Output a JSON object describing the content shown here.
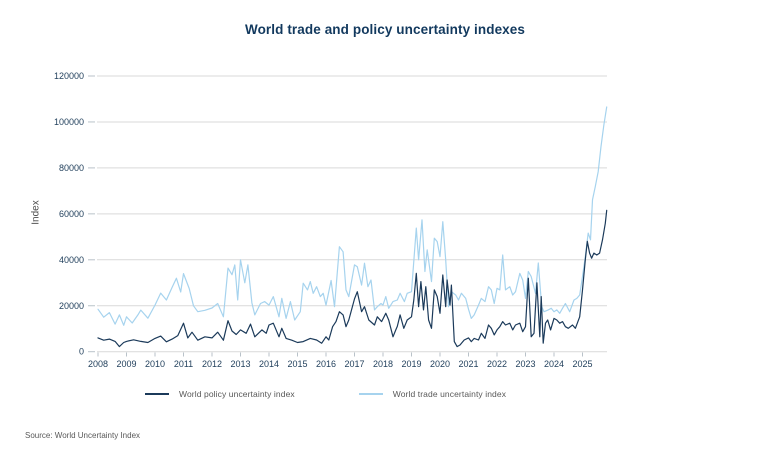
{
  "title": "World trade and policy uncertainty indexes",
  "source": "Source: World Uncertainty Index",
  "chart_data": {
    "type": "line",
    "title": "World trade and policy uncertainty indexes",
    "xlabel": "",
    "ylabel": "Index",
    "ylim": [
      0,
      120000
    ],
    "xlim": [
      2008,
      2025.9
    ],
    "grid": "horizontal",
    "legend_position": "bottom",
    "y_ticks": [
      0,
      20000,
      40000,
      60000,
      80000,
      100000,
      120000
    ],
    "x_ticks": [
      2008,
      2009,
      2010,
      2011,
      2012,
      2013,
      2014,
      2015,
      2016,
      2017,
      2018,
      2019,
      2020,
      2021,
      2022,
      2023,
      2024,
      2025
    ],
    "colors": {
      "policy_line": "#1b3a5a",
      "trade_line": "#a6d3ee",
      "gridline": "#d9d9d9",
      "tick": "#b9c2c9",
      "axis_text": "#24425e",
      "title_text": "#12395e",
      "legend_text": "#595959",
      "background": "#ffffff"
    },
    "series": [
      {
        "name": "World policy uncertainty index",
        "color": "#1b3a5a",
        "points": [
          [
            2008.0,
            6000
          ],
          [
            2008.2,
            5000
          ],
          [
            2008.4,
            5500
          ],
          [
            2008.6,
            4500
          ],
          [
            2008.75,
            2200
          ],
          [
            2008.9,
            4000
          ],
          [
            2009.0,
            4500
          ],
          [
            2009.25,
            5200
          ],
          [
            2009.5,
            4500
          ],
          [
            2009.75,
            4000
          ],
          [
            2010.0,
            5800
          ],
          [
            2010.2,
            6800
          ],
          [
            2010.4,
            4300
          ],
          [
            2010.6,
            5500
          ],
          [
            2010.8,
            7000
          ],
          [
            2011.0,
            12400
          ],
          [
            2011.15,
            6000
          ],
          [
            2011.3,
            8500
          ],
          [
            2011.5,
            5000
          ],
          [
            2011.75,
            6500
          ],
          [
            2012.0,
            6000
          ],
          [
            2012.2,
            8500
          ],
          [
            2012.4,
            5000
          ],
          [
            2012.56,
            13500
          ],
          [
            2012.7,
            9000
          ],
          [
            2012.85,
            7500
          ],
          [
            2013.0,
            9500
          ],
          [
            2013.2,
            8000
          ],
          [
            2013.35,
            12000
          ],
          [
            2013.5,
            6500
          ],
          [
            2013.75,
            9500
          ],
          [
            2013.9,
            8000
          ],
          [
            2014.0,
            11600
          ],
          [
            2014.15,
            12400
          ],
          [
            2014.35,
            6500
          ],
          [
            2014.45,
            10200
          ],
          [
            2014.6,
            5800
          ],
          [
            2014.8,
            5000
          ],
          [
            2015.0,
            4000
          ],
          [
            2015.2,
            4400
          ],
          [
            2015.45,
            5800
          ],
          [
            2015.67,
            5100
          ],
          [
            2015.85,
            3700
          ],
          [
            2016.0,
            6500
          ],
          [
            2016.1,
            5100
          ],
          [
            2016.23,
            10900
          ],
          [
            2016.35,
            13100
          ],
          [
            2016.47,
            17400
          ],
          [
            2016.6,
            16000
          ],
          [
            2016.7,
            10900
          ],
          [
            2016.8,
            13800
          ],
          [
            2017.0,
            23000
          ],
          [
            2017.1,
            26100
          ],
          [
            2017.25,
            17400
          ],
          [
            2017.35,
            19600
          ],
          [
            2017.5,
            13800
          ],
          [
            2017.7,
            11600
          ],
          [
            2017.8,
            15200
          ],
          [
            2017.95,
            13100
          ],
          [
            2018.1,
            16700
          ],
          [
            2018.2,
            13800
          ],
          [
            2018.35,
            6500
          ],
          [
            2018.45,
            9500
          ],
          [
            2018.5,
            11000
          ],
          [
            2018.6,
            16000
          ],
          [
            2018.73,
            10200
          ],
          [
            2018.85,
            13800
          ],
          [
            2019.0,
            15200
          ],
          [
            2019.08,
            22500
          ],
          [
            2019.17,
            34100
          ],
          [
            2019.25,
            19600
          ],
          [
            2019.33,
            30500
          ],
          [
            2019.42,
            18200
          ],
          [
            2019.5,
            28300
          ],
          [
            2019.6,
            13800
          ],
          [
            2019.7,
            10200
          ],
          [
            2019.8,
            26900
          ],
          [
            2019.9,
            24000
          ],
          [
            2020.0,
            16700
          ],
          [
            2020.1,
            33400
          ],
          [
            2020.2,
            19600
          ],
          [
            2020.25,
            31200
          ],
          [
            2020.35,
            20300
          ],
          [
            2020.4,
            29000
          ],
          [
            2020.5,
            4400
          ],
          [
            2020.6,
            2200
          ],
          [
            2020.7,
            2900
          ],
          [
            2020.85,
            5100
          ],
          [
            2021.0,
            6000
          ],
          [
            2021.1,
            4400
          ],
          [
            2021.2,
            5800
          ],
          [
            2021.35,
            5100
          ],
          [
            2021.45,
            8000
          ],
          [
            2021.58,
            5800
          ],
          [
            2021.7,
            11600
          ],
          [
            2021.8,
            10200
          ],
          [
            2021.9,
            7300
          ],
          [
            2022.0,
            9500
          ],
          [
            2022.1,
            10900
          ],
          [
            2022.2,
            13100
          ],
          [
            2022.3,
            11600
          ],
          [
            2022.45,
            12400
          ],
          [
            2022.55,
            9500
          ],
          [
            2022.65,
            11600
          ],
          [
            2022.8,
            12400
          ],
          [
            2022.9,
            8700
          ],
          [
            2023.0,
            10900
          ],
          [
            2023.1,
            32000
          ],
          [
            2023.2,
            6500
          ],
          [
            2023.3,
            8000
          ],
          [
            2023.4,
            30000
          ],
          [
            2023.5,
            6500
          ],
          [
            2023.55,
            24000
          ],
          [
            2023.62,
            3700
          ],
          [
            2023.7,
            12400
          ],
          [
            2023.78,
            13800
          ],
          [
            2023.88,
            9500
          ],
          [
            2024.0,
            14500
          ],
          [
            2024.1,
            13800
          ],
          [
            2024.2,
            12400
          ],
          [
            2024.3,
            13100
          ],
          [
            2024.4,
            10900
          ],
          [
            2024.5,
            10200
          ],
          [
            2024.65,
            11600
          ],
          [
            2024.75,
            10200
          ],
          [
            2024.9,
            15200
          ],
          [
            2025.0,
            26900
          ],
          [
            2025.1,
            40000
          ],
          [
            2025.17,
            48000
          ],
          [
            2025.25,
            42900
          ],
          [
            2025.32,
            40700
          ],
          [
            2025.4,
            42900
          ],
          [
            2025.5,
            42100
          ],
          [
            2025.6,
            42900
          ],
          [
            2025.7,
            48700
          ],
          [
            2025.8,
            55900
          ],
          [
            2025.85,
            61500
          ]
        ]
      },
      {
        "name": "World trade uncertainty index",
        "color": "#a6d3ee",
        "points": [
          [
            2008.0,
            18500
          ],
          [
            2008.2,
            15000
          ],
          [
            2008.4,
            17000
          ],
          [
            2008.6,
            12000
          ],
          [
            2008.75,
            16000
          ],
          [
            2008.9,
            11500
          ],
          [
            2009.0,
            15200
          ],
          [
            2009.2,
            12500
          ],
          [
            2009.4,
            16000
          ],
          [
            2009.5,
            18100
          ],
          [
            2009.75,
            14600
          ],
          [
            2010.0,
            20300
          ],
          [
            2010.2,
            25500
          ],
          [
            2010.4,
            22500
          ],
          [
            2010.6,
            28000
          ],
          [
            2010.75,
            32000
          ],
          [
            2010.9,
            26000
          ],
          [
            2011.0,
            34000
          ],
          [
            2011.2,
            27500
          ],
          [
            2011.35,
            20000
          ],
          [
            2011.5,
            17400
          ],
          [
            2011.75,
            18000
          ],
          [
            2012.0,
            19000
          ],
          [
            2012.2,
            21000
          ],
          [
            2012.4,
            15200
          ],
          [
            2012.56,
            36400
          ],
          [
            2012.7,
            33500
          ],
          [
            2012.8,
            37800
          ],
          [
            2012.9,
            22500
          ],
          [
            2013.0,
            40000
          ],
          [
            2013.15,
            30000
          ],
          [
            2013.26,
            37800
          ],
          [
            2013.4,
            21200
          ],
          [
            2013.5,
            16000
          ],
          [
            2013.7,
            21000
          ],
          [
            2013.85,
            21800
          ],
          [
            2014.0,
            20300
          ],
          [
            2014.15,
            24000
          ],
          [
            2014.35,
            15200
          ],
          [
            2014.45,
            23200
          ],
          [
            2014.6,
            14500
          ],
          [
            2014.75,
            21800
          ],
          [
            2014.9,
            13800
          ],
          [
            2015.1,
            17400
          ],
          [
            2015.2,
            29800
          ],
          [
            2015.35,
            26900
          ],
          [
            2015.45,
            30500
          ],
          [
            2015.55,
            25400
          ],
          [
            2015.67,
            28300
          ],
          [
            2015.8,
            24000
          ],
          [
            2015.9,
            25400
          ],
          [
            2016.0,
            20300
          ],
          [
            2016.18,
            31000
          ],
          [
            2016.3,
            19600
          ],
          [
            2016.47,
            45700
          ],
          [
            2016.6,
            43500
          ],
          [
            2016.7,
            26900
          ],
          [
            2016.8,
            24000
          ],
          [
            2017.0,
            37800
          ],
          [
            2017.1,
            37000
          ],
          [
            2017.25,
            29000
          ],
          [
            2017.35,
            38500
          ],
          [
            2017.47,
            28300
          ],
          [
            2017.58,
            31200
          ],
          [
            2017.7,
            18200
          ],
          [
            2017.8,
            19600
          ],
          [
            2017.93,
            21000
          ],
          [
            2018.0,
            20300
          ],
          [
            2018.1,
            24000
          ],
          [
            2018.2,
            18900
          ],
          [
            2018.35,
            21800
          ],
          [
            2018.5,
            22500
          ],
          [
            2018.6,
            25400
          ],
          [
            2018.75,
            21800
          ],
          [
            2018.85,
            25400
          ],
          [
            2019.0,
            26100
          ],
          [
            2019.17,
            53800
          ],
          [
            2019.25,
            40000
          ],
          [
            2019.37,
            57400
          ],
          [
            2019.47,
            34900
          ],
          [
            2019.55,
            44300
          ],
          [
            2019.7,
            30500
          ],
          [
            2019.8,
            49400
          ],
          [
            2019.9,
            47900
          ],
          [
            2020.0,
            41400
          ],
          [
            2020.1,
            56600
          ],
          [
            2020.2,
            40000
          ],
          [
            2020.3,
            19600
          ],
          [
            2020.4,
            26100
          ],
          [
            2020.55,
            24700
          ],
          [
            2020.65,
            22500
          ],
          [
            2020.75,
            25400
          ],
          [
            2020.9,
            23200
          ],
          [
            2021.0,
            18500
          ],
          [
            2021.1,
            14500
          ],
          [
            2021.2,
            16000
          ],
          [
            2021.35,
            20300
          ],
          [
            2021.45,
            23200
          ],
          [
            2021.58,
            21800
          ],
          [
            2021.7,
            28300
          ],
          [
            2021.8,
            26900
          ],
          [
            2021.9,
            21000
          ],
          [
            2022.0,
            27600
          ],
          [
            2022.1,
            26900
          ],
          [
            2022.2,
            42100
          ],
          [
            2022.3,
            26900
          ],
          [
            2022.45,
            28300
          ],
          [
            2022.55,
            24700
          ],
          [
            2022.65,
            26100
          ],
          [
            2022.8,
            34100
          ],
          [
            2022.9,
            31200
          ],
          [
            2023.0,
            23200
          ],
          [
            2023.1,
            34900
          ],
          [
            2023.2,
            32700
          ],
          [
            2023.35,
            25400
          ],
          [
            2023.45,
            38600
          ],
          [
            2023.57,
            19600
          ],
          [
            2023.65,
            17400
          ],
          [
            2023.8,
            18200
          ],
          [
            2023.9,
            18900
          ],
          [
            2024.0,
            17400
          ],
          [
            2024.1,
            18200
          ],
          [
            2024.2,
            16700
          ],
          [
            2024.3,
            18900
          ],
          [
            2024.4,
            21000
          ],
          [
            2024.55,
            17400
          ],
          [
            2024.7,
            22500
          ],
          [
            2024.8,
            23200
          ],
          [
            2024.9,
            24700
          ],
          [
            2025.0,
            32700
          ],
          [
            2025.1,
            41400
          ],
          [
            2025.2,
            51600
          ],
          [
            2025.28,
            48700
          ],
          [
            2025.35,
            66100
          ],
          [
            2025.45,
            71900
          ],
          [
            2025.55,
            78400
          ],
          [
            2025.65,
            89300
          ],
          [
            2025.75,
            98800
          ],
          [
            2025.85,
            106500
          ]
        ]
      }
    ]
  }
}
